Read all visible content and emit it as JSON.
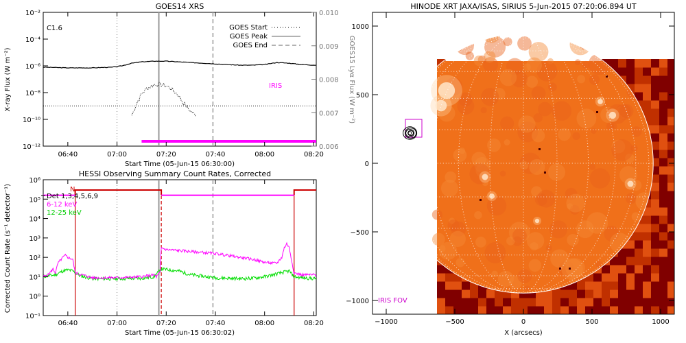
{
  "chart_data": [
    {
      "type": "line",
      "title": "GOES14 XRS",
      "xlabel": "Start Time (05-Jun-15 06:30:00)",
      "ylabel": "X-ray Flux (W m⁻²)",
      "ylabel_right": "GOES15 Lyα Flux (W m⁻²)",
      "x_ticks": [
        "06:40",
        "07:00",
        "07:20",
        "07:40",
        "08:00",
        "08:20"
      ],
      "y_ticks": [
        "10⁻¹²",
        "10⁻¹⁰",
        "10⁻⁸",
        "10⁻⁶",
        "10⁻⁴",
        "10⁻²"
      ],
      "y_ticks_right": [
        "0.006",
        "0.007",
        "0.008",
        "0.009",
        "0.010"
      ],
      "ylim_log": [
        -12,
        -2
      ],
      "ylim_right": [
        0.006,
        0.01
      ],
      "xlim_minutes": [
        0,
        111
      ],
      "annotation": "C1.6",
      "iris_label": "IRIS",
      "iris_range_minutes": [
        40,
        111
      ],
      "legend": [
        "GOES Start",
        "GOES Peak",
        "GOES End"
      ],
      "events_minutes": {
        "start": 30,
        "peak": 47,
        "end": 69
      },
      "series": [
        {
          "name": "long",
          "x": [
            0,
            10,
            20,
            28,
            32,
            36,
            40,
            45,
            50,
            55,
            60,
            65,
            70,
            75,
            80,
            85,
            90,
            95,
            100,
            105,
            111
          ],
          "y": [
            -6.1,
            -6.15,
            -6.15,
            -6.1,
            -6.0,
            -5.8,
            -5.7,
            -5.65,
            -5.65,
            -5.7,
            -5.75,
            -5.8,
            -5.85,
            -5.9,
            -5.95,
            -5.95,
            -5.9,
            -5.75,
            -5.8,
            -5.9,
            -5.95
          ]
        },
        {
          "name": "short",
          "x": [
            36,
            38,
            40,
            42,
            45,
            48,
            50,
            52,
            55,
            57,
            60,
            62
          ],
          "y": [
            -9.7,
            -8.8,
            -8.1,
            -7.7,
            -7.4,
            -7.4,
            -7.5,
            -7.7,
            -8.2,
            -8.8,
            -9.4,
            -9.7
          ]
        },
        {
          "name": "baseline",
          "x": [
            0,
            36,
            62,
            111
          ],
          "y": [
            -9.0,
            -9.0,
            -9.0,
            -9.0
          ]
        }
      ]
    },
    {
      "type": "line",
      "title": "HESSI Observing Summary Count Rates, Corrected",
      "xlabel": "Start Time (05-Jun-15 06:30:02)",
      "ylabel": "Corrected Count Rate (s⁻¹ detector⁻¹)",
      "x_ticks": [
        "06:40",
        "07:00",
        "07:20",
        "07:40",
        "08:00",
        "08:20"
      ],
      "y_ticks": [
        "10⁻¹",
        "10⁰",
        "10¹",
        "10²",
        "10³",
        "10⁴",
        "10⁵",
        "10⁶"
      ],
      "ylim_log": [
        -1,
        6
      ],
      "xlim_minutes": [
        0,
        111
      ],
      "legend": [
        {
          "name": "Det 1,3,4,5,6,9",
          "color": "#000000"
        },
        {
          "name": "6-12 keV",
          "color": "#ff00ff"
        },
        {
          "name": "12-25 keV",
          "color": "#00dd00"
        }
      ],
      "night_marker": "N",
      "red_boundaries_minutes": [
        13,
        48,
        102
      ],
      "events_minutes": {
        "start": 30,
        "peak": 47,
        "end": 69
      },
      "magenta_segments": [
        {
          "x": [
            0,
            13
          ],
          "y": 5.2
        },
        {
          "x": [
            48,
            102
          ],
          "y": 5.2
        }
      ],
      "series": [
        {
          "name": "6-12 keV",
          "x": [
            0,
            2,
            4,
            5,
            6,
            8,
            9,
            10,
            12,
            13,
            20,
            30,
            40,
            45,
            46,
            47.5,
            48,
            50,
            55,
            60,
            65,
            70,
            75,
            80,
            85,
            90,
            93,
            95,
            97,
            98,
            99,
            100,
            102,
            105,
            111
          ],
          "y": [
            1.0,
            1.1,
            1.4,
            1.2,
            1.7,
            2.0,
            2.1,
            2.0,
            1.9,
            1.2,
            0.95,
            0.95,
            1.0,
            1.1,
            1.0,
            1.2,
            2.5,
            2.4,
            2.35,
            2.3,
            2.25,
            2.2,
            2.1,
            2.0,
            1.9,
            1.75,
            1.7,
            1.7,
            2.0,
            2.5,
            2.7,
            2.5,
            1.2,
            1.1,
            1.1
          ]
        },
        {
          "name": "12-25 keV",
          "x": [
            0,
            5,
            8,
            10,
            12,
            15,
            20,
            30,
            40,
            45,
            48,
            55,
            60,
            70,
            80,
            85,
            90,
            95,
            100,
            102,
            105,
            111
          ],
          "y": [
            1.0,
            1.1,
            1.3,
            1.35,
            1.3,
            1.05,
            0.9,
            0.9,
            0.92,
            1.0,
            1.4,
            1.3,
            1.1,
            0.95,
            0.9,
            0.92,
            1.0,
            1.15,
            1.3,
            1.0,
            0.95,
            0.9
          ]
        }
      ]
    },
    {
      "type": "heatmap",
      "title": "HINODE XRT JAXA/ISAS, SIRIUS  5-Jun-2015 07:20:06.894 UT",
      "xlabel": "X (arcsecs)",
      "x_ticks": [
        "−1000",
        "−500",
        "0",
        "500",
        "1000"
      ],
      "y_ticks": [
        "−1000",
        "−500",
        "0",
        "500",
        "1000"
      ],
      "xlim": [
        -1100,
        1100
      ],
      "ylim": [
        -1100,
        1100
      ],
      "image_extent": {
        "x": [
          -630,
          1100
        ],
        "y": [
          -1100,
          745
        ]
      },
      "solar_radius_arcsec": 946,
      "grid": true,
      "iris_fov_label": "IRIS FOV",
      "iris_fov_box": {
        "x": [
          -860,
          -740
        ],
        "y": [
          190,
          320
        ]
      },
      "flare_contour_center": [
        -825,
        220
      ],
      "colors": {
        "disk": "#f0701a",
        "limb": "#e05010",
        "corona": "#c03000",
        "dark": "#800000",
        "bright": "#fff2e0",
        "iris": "#cc00cc"
      }
    }
  ]
}
